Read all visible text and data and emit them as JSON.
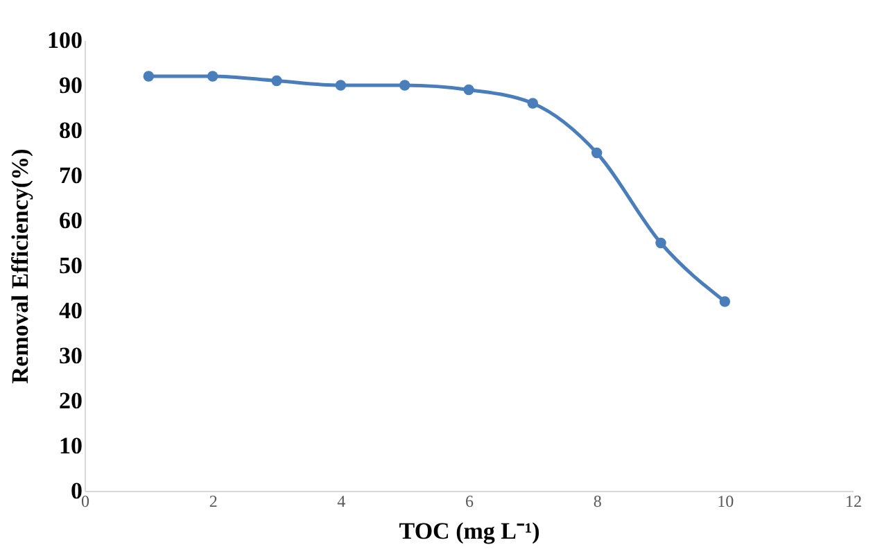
{
  "chart_data": {
    "type": "line",
    "x": [
      1,
      2,
      3,
      4,
      5,
      6,
      7,
      8,
      9,
      10
    ],
    "series": [
      {
        "color": "#4a7ebb",
        "values": [
          92,
          92,
          91,
          90,
          90,
          89,
          86,
          75,
          55,
          42
        ]
      }
    ],
    "xlabel": "TOC (mg L⁻¹)",
    "ylabel": "Removal Efficiency(%)",
    "xlim": [
      0,
      12
    ],
    "xticks": [
      0,
      2,
      4,
      6,
      8,
      10,
      12
    ],
    "ylim": [
      0,
      100
    ],
    "yticks": [
      0,
      10,
      20,
      30,
      40,
      50,
      60,
      70,
      80,
      90,
      100
    ],
    "grid": false,
    "marker": "circle",
    "line_style": "solid",
    "legend": false
  }
}
